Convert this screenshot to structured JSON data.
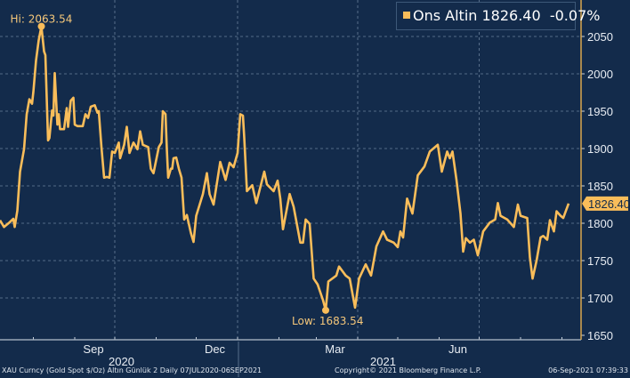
{
  "legend": {
    "name": "Ons Altin",
    "last": "1826.40",
    "change": "-0.07%"
  },
  "footer": {
    "security": "XAU Curncy (Gold Spot   $/Oz) Altın Günlük 2  Daily 07JUL2020-06SEP2021",
    "copyright": "Copyright© 2021 Bloomberg Finance L.P.",
    "timestamp": "06-Sep-2021 07:39:33"
  },
  "chart_data": {
    "type": "line",
    "title": "",
    "xlabel": "",
    "ylabel": "",
    "xlim": [
      "2020-07-07",
      "2021-09-06"
    ],
    "ylim": [
      1650,
      2095
    ],
    "y_ticks": [
      1650,
      1700,
      1750,
      1800,
      1850,
      1900,
      1950,
      2000,
      2050
    ],
    "x_month_labels": [
      {
        "label": "Sep",
        "date": "2020-09-15"
      },
      {
        "label": "Dec",
        "date": "2020-12-15"
      },
      {
        "label": "Mar",
        "date": "2021-03-15"
      },
      {
        "label": "Jun",
        "date": "2021-06-15"
      }
    ],
    "x_year_labels": [
      {
        "label": "2020",
        "date": "2020-10-06"
      },
      {
        "label": "2021",
        "date": "2021-04-20"
      }
    ],
    "grid": true,
    "axis_side": "right",
    "line_color": "#f9bd5a",
    "background": "#132b4b",
    "annotations": {
      "high": {
        "label": "Hi: 2063.54",
        "date": "2020-08-07",
        "value": 2063.54
      },
      "low": {
        "label": "Low: 1683.54",
        "date": "2021-03-08",
        "value": 1683.54
      },
      "last": {
        "label": "1826.40",
        "value": 1826.4
      }
    },
    "series": [
      {
        "points": [
          [
            "2020-07-07",
            1804
          ],
          [
            "2020-07-10",
            1795
          ],
          [
            "2020-07-14",
            1801
          ],
          [
            "2020-07-17",
            1806
          ],
          [
            "2020-07-18",
            1795
          ],
          [
            "2020-07-20",
            1817
          ],
          [
            "2020-07-22",
            1869
          ],
          [
            "2020-07-25",
            1899
          ],
          [
            "2020-07-27",
            1946
          ],
          [
            "2020-07-29",
            1966
          ],
          [
            "2020-07-31",
            1960
          ],
          [
            "2020-08-01",
            1976
          ],
          [
            "2020-08-03",
            2018
          ],
          [
            "2020-08-05",
            2045
          ],
          [
            "2020-08-07",
            2063.54
          ],
          [
            "2020-08-09",
            2030
          ],
          [
            "2020-08-10",
            2025
          ],
          [
            "2020-08-12",
            1911
          ],
          [
            "2020-08-13",
            1914
          ],
          [
            "2020-08-15",
            1951
          ],
          [
            "2020-08-16",
            1944
          ],
          [
            "2020-08-17",
            2001
          ],
          [
            "2020-08-19",
            1932
          ],
          [
            "2020-08-20",
            1946
          ],
          [
            "2020-08-21",
            1926
          ],
          [
            "2020-08-24",
            1926
          ],
          [
            "2020-08-26",
            1954
          ],
          [
            "2020-08-27",
            1929
          ],
          [
            "2020-08-29",
            1964
          ],
          [
            "2020-08-31",
            1968
          ],
          [
            "2020-09-01",
            1932
          ],
          [
            "2020-09-03",
            1930
          ],
          [
            "2020-09-07",
            1930
          ],
          [
            "2020-09-09",
            1946
          ],
          [
            "2020-09-11",
            1941
          ],
          [
            "2020-09-13",
            1956
          ],
          [
            "2020-09-16",
            1958
          ],
          [
            "2020-09-18",
            1948
          ],
          [
            "2020-09-19",
            1950
          ],
          [
            "2020-09-21",
            1902
          ],
          [
            "2020-09-23",
            1861
          ],
          [
            "2020-09-25",
            1862
          ],
          [
            "2020-09-27",
            1861
          ],
          [
            "2020-09-29",
            1896
          ],
          [
            "2020-10-01",
            1894
          ],
          [
            "2020-10-04",
            1908
          ],
          [
            "2020-10-05",
            1887
          ],
          [
            "2020-10-08",
            1905
          ],
          [
            "2020-10-10",
            1929
          ],
          [
            "2020-10-12",
            1894
          ],
          [
            "2020-10-15",
            1908
          ],
          [
            "2020-10-18",
            1899
          ],
          [
            "2020-10-20",
            1923
          ],
          [
            "2020-10-22",
            1905
          ],
          [
            "2020-10-26",
            1902
          ],
          [
            "2020-10-28",
            1873
          ],
          [
            "2020-10-30",
            1867
          ],
          [
            "2020-11-03",
            1902
          ],
          [
            "2020-11-05",
            1908
          ],
          [
            "2020-11-06",
            1950
          ],
          [
            "2020-11-08",
            1946
          ],
          [
            "2020-11-09",
            1899
          ],
          [
            "2020-11-10",
            1861
          ],
          [
            "2020-11-12",
            1873
          ],
          [
            "2020-11-13",
            1873
          ],
          [
            "2020-11-14",
            1887
          ],
          [
            "2020-11-16",
            1888
          ],
          [
            "2020-11-18",
            1873
          ],
          [
            "2020-11-20",
            1861
          ],
          [
            "2020-11-22",
            1805
          ],
          [
            "2020-11-24",
            1811
          ],
          [
            "2020-11-27",
            1787
          ],
          [
            "2020-11-29",
            1775
          ],
          [
            "2020-12-01",
            1810
          ],
          [
            "2020-12-06",
            1839
          ],
          [
            "2020-12-09",
            1867
          ],
          [
            "2020-12-11",
            1839
          ],
          [
            "2020-12-14",
            1825
          ],
          [
            "2020-12-19",
            1882
          ],
          [
            "2020-12-23",
            1858
          ],
          [
            "2020-12-26",
            1881
          ],
          [
            "2020-12-29",
            1875
          ],
          [
            "2021-01-01",
            1894
          ],
          [
            "2021-01-03",
            1946
          ],
          [
            "2021-01-05",
            1944
          ],
          [
            "2021-01-06",
            1914
          ],
          [
            "2021-01-08",
            1843
          ],
          [
            "2021-01-12",
            1851
          ],
          [
            "2021-01-15",
            1827
          ],
          [
            "2021-01-21",
            1869
          ],
          [
            "2021-01-23",
            1852
          ],
          [
            "2021-01-28",
            1843
          ],
          [
            "2021-01-31",
            1857
          ],
          [
            "2021-02-02",
            1833
          ],
          [
            "2021-02-04",
            1792
          ],
          [
            "2021-02-09",
            1839
          ],
          [
            "2021-02-12",
            1822
          ],
          [
            "2021-02-17",
            1774
          ],
          [
            "2021-02-19",
            1774
          ],
          [
            "2021-02-21",
            1805
          ],
          [
            "2021-02-24",
            1799
          ],
          [
            "2021-02-27",
            1726
          ],
          [
            "2021-03-02",
            1718
          ],
          [
            "2021-03-06",
            1697
          ],
          [
            "2021-03-08",
            1683.54
          ],
          [
            "2021-03-10",
            1722
          ],
          [
            "2021-03-16",
            1730
          ],
          [
            "2021-03-18",
            1742
          ],
          [
            "2021-03-23",
            1730
          ],
          [
            "2021-03-26",
            1726
          ],
          [
            "2021-03-30",
            1687
          ],
          [
            "2021-04-02",
            1726
          ],
          [
            "2021-04-07",
            1745
          ],
          [
            "2021-04-11",
            1730
          ],
          [
            "2021-04-15",
            1769
          ],
          [
            "2021-04-20",
            1789
          ],
          [
            "2021-04-23",
            1778
          ],
          [
            "2021-04-28",
            1774
          ],
          [
            "2021-05-01",
            1768
          ],
          [
            "2021-05-03",
            1789
          ],
          [
            "2021-05-05",
            1781
          ],
          [
            "2021-05-08",
            1833
          ],
          [
            "2021-05-12",
            1813
          ],
          [
            "2021-05-16",
            1864
          ],
          [
            "2021-05-21",
            1876
          ],
          [
            "2021-05-25",
            1896
          ],
          [
            "2021-05-31",
            1905
          ],
          [
            "2021-06-03",
            1869
          ],
          [
            "2021-06-07",
            1896
          ],
          [
            "2021-06-09",
            1887
          ],
          [
            "2021-06-11",
            1896
          ],
          [
            "2021-06-14",
            1858
          ],
          [
            "2021-06-17",
            1813
          ],
          [
            "2021-06-19",
            1762
          ],
          [
            "2021-06-21",
            1780
          ],
          [
            "2021-06-24",
            1774
          ],
          [
            "2021-06-27",
            1778
          ],
          [
            "2021-06-30",
            1757
          ],
          [
            "2021-07-04",
            1789
          ],
          [
            "2021-07-09",
            1801
          ],
          [
            "2021-07-13",
            1805
          ],
          [
            "2021-07-15",
            1827
          ],
          [
            "2021-07-17",
            1810
          ],
          [
            "2021-07-22",
            1805
          ],
          [
            "2021-07-27",
            1795
          ],
          [
            "2021-07-30",
            1825
          ],
          [
            "2021-08-01",
            1810
          ],
          [
            "2021-08-06",
            1807
          ],
          [
            "2021-08-08",
            1754
          ],
          [
            "2021-08-10",
            1726
          ],
          [
            "2021-08-13",
            1750
          ],
          [
            "2021-08-16",
            1781
          ],
          [
            "2021-08-18",
            1783
          ],
          [
            "2021-08-21",
            1778
          ],
          [
            "2021-08-23",
            1804
          ],
          [
            "2021-08-26",
            1789
          ],
          [
            "2021-08-28",
            1816
          ],
          [
            "2021-08-31",
            1810
          ],
          [
            "2021-09-02",
            1807
          ],
          [
            "2021-09-06",
            1826.4
          ]
        ]
      }
    ]
  }
}
